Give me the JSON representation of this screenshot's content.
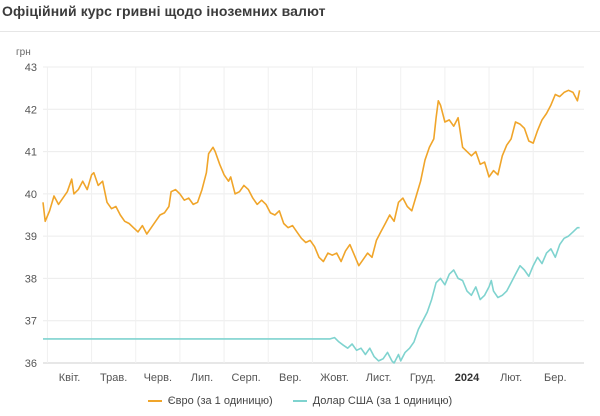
{
  "title": "Офіційний курс гривні щодо іноземних валют",
  "chart_data": {
    "type": "line",
    "ylabel": "грн",
    "ylim": [
      36,
      43
    ],
    "yticks": [
      36,
      37,
      38,
      39,
      40,
      41,
      42,
      43
    ],
    "month_labels": [
      {
        "label": "Квіт.",
        "x": 1,
        "bold": false
      },
      {
        "label": "Трав.",
        "x": 2,
        "bold": false
      },
      {
        "label": "Черв.",
        "x": 3,
        "bold": false
      },
      {
        "label": "Лип.",
        "x": 4,
        "bold": false
      },
      {
        "label": "Серп.",
        "x": 5,
        "bold": false
      },
      {
        "label": "Вер.",
        "x": 6,
        "bold": false
      },
      {
        "label": "Жовт.",
        "x": 7,
        "bold": false
      },
      {
        "label": "Лист.",
        "x": 8,
        "bold": false
      },
      {
        "label": "Груд.",
        "x": 9,
        "bold": false
      },
      {
        "label": "2024",
        "x": 10,
        "bold": true
      },
      {
        "label": "Лют.",
        "x": 11,
        "bold": false
      },
      {
        "label": "Бер.",
        "x": 12,
        "bold": false
      }
    ],
    "xlim": [
      0.4,
      12.65
    ],
    "series": [
      {
        "name": "Євро (за 1 одиницю)",
        "color": "#f0a52a",
        "points": [
          [
            0.4,
            39.8
          ],
          [
            0.45,
            39.35
          ],
          [
            0.55,
            39.6
          ],
          [
            0.65,
            39.95
          ],
          [
            0.75,
            39.75
          ],
          [
            0.85,
            39.9
          ],
          [
            0.95,
            40.05
          ],
          [
            1.05,
            40.35
          ],
          [
            1.1,
            40.0
          ],
          [
            1.2,
            40.1
          ],
          [
            1.3,
            40.3
          ],
          [
            1.4,
            40.1
          ],
          [
            1.5,
            40.45
          ],
          [
            1.55,
            40.5
          ],
          [
            1.65,
            40.2
          ],
          [
            1.75,
            40.3
          ],
          [
            1.85,
            39.8
          ],
          [
            1.95,
            39.65
          ],
          [
            2.05,
            39.7
          ],
          [
            2.15,
            39.5
          ],
          [
            2.25,
            39.35
          ],
          [
            2.35,
            39.3
          ],
          [
            2.45,
            39.2
          ],
          [
            2.55,
            39.1
          ],
          [
            2.65,
            39.25
          ],
          [
            2.75,
            39.05
          ],
          [
            2.85,
            39.2
          ],
          [
            2.95,
            39.35
          ],
          [
            3.05,
            39.5
          ],
          [
            3.15,
            39.55
          ],
          [
            3.25,
            39.7
          ],
          [
            3.3,
            40.05
          ],
          [
            3.4,
            40.1
          ],
          [
            3.5,
            40.0
          ],
          [
            3.6,
            39.85
          ],
          [
            3.7,
            39.9
          ],
          [
            3.8,
            39.75
          ],
          [
            3.9,
            39.8
          ],
          [
            4.0,
            40.1
          ],
          [
            4.1,
            40.5
          ],
          [
            4.15,
            40.95
          ],
          [
            4.25,
            41.1
          ],
          [
            4.3,
            41.0
          ],
          [
            4.4,
            40.7
          ],
          [
            4.5,
            40.45
          ],
          [
            4.6,
            40.3
          ],
          [
            4.65,
            40.4
          ],
          [
            4.75,
            40.0
          ],
          [
            4.85,
            40.05
          ],
          [
            4.95,
            40.2
          ],
          [
            5.05,
            40.1
          ],
          [
            5.15,
            39.9
          ],
          [
            5.25,
            39.75
          ],
          [
            5.35,
            39.85
          ],
          [
            5.45,
            39.75
          ],
          [
            5.55,
            39.55
          ],
          [
            5.65,
            39.5
          ],
          [
            5.75,
            39.6
          ],
          [
            5.85,
            39.3
          ],
          [
            5.95,
            39.2
          ],
          [
            6.05,
            39.25
          ],
          [
            6.15,
            39.1
          ],
          [
            6.25,
            38.95
          ],
          [
            6.35,
            38.85
          ],
          [
            6.45,
            38.9
          ],
          [
            6.55,
            38.75
          ],
          [
            6.65,
            38.5
          ],
          [
            6.75,
            38.4
          ],
          [
            6.85,
            38.6
          ],
          [
            6.95,
            38.55
          ],
          [
            7.05,
            38.6
          ],
          [
            7.15,
            38.4
          ],
          [
            7.25,
            38.65
          ],
          [
            7.35,
            38.8
          ],
          [
            7.45,
            38.55
          ],
          [
            7.55,
            38.3
          ],
          [
            7.65,
            38.45
          ],
          [
            7.75,
            38.6
          ],
          [
            7.85,
            38.5
          ],
          [
            7.95,
            38.9
          ],
          [
            8.05,
            39.1
          ],
          [
            8.15,
            39.3
          ],
          [
            8.25,
            39.5
          ],
          [
            8.35,
            39.35
          ],
          [
            8.45,
            39.8
          ],
          [
            8.55,
            39.9
          ],
          [
            8.65,
            39.7
          ],
          [
            8.75,
            39.6
          ],
          [
            8.85,
            39.95
          ],
          [
            8.95,
            40.3
          ],
          [
            9.05,
            40.8
          ],
          [
            9.15,
            41.1
          ],
          [
            9.25,
            41.3
          ],
          [
            9.3,
            41.8
          ],
          [
            9.35,
            42.2
          ],
          [
            9.4,
            42.1
          ],
          [
            9.5,
            41.7
          ],
          [
            9.6,
            41.75
          ],
          [
            9.7,
            41.6
          ],
          [
            9.8,
            41.8
          ],
          [
            9.9,
            41.1
          ],
          [
            10.0,
            41.0
          ],
          [
            10.1,
            40.9
          ],
          [
            10.2,
            41.0
          ],
          [
            10.3,
            40.7
          ],
          [
            10.4,
            40.75
          ],
          [
            10.5,
            40.4
          ],
          [
            10.6,
            40.55
          ],
          [
            10.7,
            40.45
          ],
          [
            10.8,
            40.9
          ],
          [
            10.9,
            41.15
          ],
          [
            11.0,
            41.3
          ],
          [
            11.1,
            41.7
          ],
          [
            11.2,
            41.65
          ],
          [
            11.3,
            41.55
          ],
          [
            11.4,
            41.25
          ],
          [
            11.5,
            41.2
          ],
          [
            11.6,
            41.5
          ],
          [
            11.7,
            41.75
          ],
          [
            11.8,
            41.9
          ],
          [
            11.9,
            42.1
          ],
          [
            12.0,
            42.35
          ],
          [
            12.1,
            42.3
          ],
          [
            12.2,
            42.4
          ],
          [
            12.3,
            42.45
          ],
          [
            12.4,
            42.4
          ],
          [
            12.5,
            42.2
          ],
          [
            12.55,
            42.45
          ]
        ]
      },
      {
        "name": "Долар США (за 1 одиницю)",
        "color": "#7fd3cf",
        "points": [
          [
            0.4,
            36.57
          ],
          [
            1.0,
            36.57
          ],
          [
            2.0,
            36.57
          ],
          [
            3.0,
            36.57
          ],
          [
            4.0,
            36.57
          ],
          [
            5.0,
            36.57
          ],
          [
            6.0,
            36.57
          ],
          [
            6.9,
            36.57
          ],
          [
            7.0,
            36.6
          ],
          [
            7.1,
            36.5
          ],
          [
            7.2,
            36.42
          ],
          [
            7.3,
            36.35
          ],
          [
            7.4,
            36.45
          ],
          [
            7.5,
            36.3
          ],
          [
            7.6,
            36.35
          ],
          [
            7.7,
            36.2
          ],
          [
            7.8,
            36.35
          ],
          [
            7.9,
            36.15
          ],
          [
            8.0,
            36.05
          ],
          [
            8.1,
            36.1
          ],
          [
            8.2,
            36.25
          ],
          [
            8.3,
            36.05
          ],
          [
            8.35,
            36.0
          ],
          [
            8.45,
            36.2
          ],
          [
            8.5,
            36.05
          ],
          [
            8.6,
            36.25
          ],
          [
            8.7,
            36.35
          ],
          [
            8.8,
            36.5
          ],
          [
            8.9,
            36.8
          ],
          [
            9.0,
            37.0
          ],
          [
            9.1,
            37.2
          ],
          [
            9.2,
            37.5
          ],
          [
            9.3,
            37.9
          ],
          [
            9.4,
            38.0
          ],
          [
            9.5,
            37.85
          ],
          [
            9.6,
            38.1
          ],
          [
            9.7,
            38.2
          ],
          [
            9.8,
            38.0
          ],
          [
            9.9,
            37.95
          ],
          [
            10.0,
            37.7
          ],
          [
            10.1,
            37.6
          ],
          [
            10.2,
            37.8
          ],
          [
            10.3,
            37.5
          ],
          [
            10.4,
            37.6
          ],
          [
            10.5,
            37.8
          ],
          [
            10.55,
            37.95
          ],
          [
            10.6,
            37.7
          ],
          [
            10.7,
            37.55
          ],
          [
            10.8,
            37.6
          ],
          [
            10.9,
            37.7
          ],
          [
            11.0,
            37.9
          ],
          [
            11.1,
            38.1
          ],
          [
            11.2,
            38.3
          ],
          [
            11.3,
            38.2
          ],
          [
            11.4,
            38.05
          ],
          [
            11.5,
            38.3
          ],
          [
            11.6,
            38.5
          ],
          [
            11.7,
            38.35
          ],
          [
            11.8,
            38.6
          ],
          [
            11.9,
            38.7
          ],
          [
            12.0,
            38.5
          ],
          [
            12.1,
            38.8
          ],
          [
            12.2,
            38.95
          ],
          [
            12.3,
            39.0
          ],
          [
            12.4,
            39.1
          ],
          [
            12.5,
            39.2
          ],
          [
            12.55,
            39.2
          ]
        ]
      }
    ]
  }
}
